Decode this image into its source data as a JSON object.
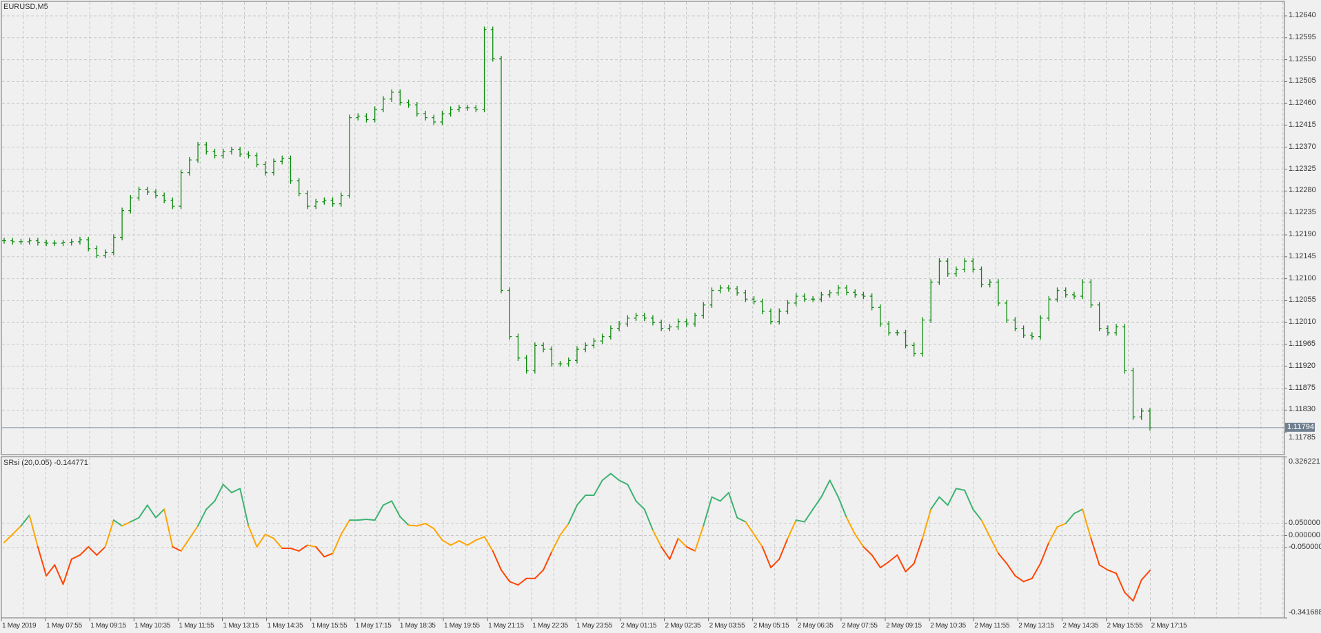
{
  "window": {
    "title": "EURUSD,M5"
  },
  "indicator": {
    "label": "SRsi (20,0.05) -0.144771"
  },
  "colors": {
    "background": "#f0f0f0",
    "grid": "#c8c8c8",
    "frame": "#707070",
    "bars": "#0b8a0b",
    "above_level": "#3cb371",
    "neutral": "#ffa500",
    "below_level": "#ff4500",
    "price_tag": "#708090"
  },
  "current_price": "1.11794",
  "price_axis": [
    "1.12640",
    "1.12595",
    "1.12550",
    "1.12505",
    "1.12460",
    "1.12415",
    "1.12370",
    "1.12325",
    "1.12280",
    "1.12235",
    "1.12190",
    "1.12145",
    "1.12100",
    "1.12055",
    "1.12010",
    "1.11965",
    "1.11920",
    "1.11875",
    "1.11830",
    "1.11785"
  ],
  "indicator_axis": [
    "0.326221",
    "0.050000",
    "0.000000",
    "-0.050000",
    "-0.341688"
  ],
  "time_axis": [
    "1 May 2019",
    "1 May 07:55",
    "1 May 09:15",
    "1 May 10:35",
    "1 May 11:55",
    "1 May 13:15",
    "1 May 14:35",
    "1 May 15:55",
    "1 May 17:15",
    "1 May 18:35",
    "1 May 19:55",
    "1 May 21:15",
    "1 May 22:35",
    "1 May 23:55",
    "2 May 01:15",
    "2 May 02:35",
    "2 May 03:55",
    "2 May 05:15",
    "2 May 06:35",
    "2 May 07:55",
    "2 May 09:15",
    "2 May 10:35",
    "2 May 11:55",
    "2 May 13:15",
    "2 May 14:35",
    "2 May 15:55",
    "2 May 17:15"
  ],
  "chart_data": [
    {
      "type": "bar",
      "title": "EURUSD,M5",
      "ylim": [
        1.11765,
        1.1268
      ],
      "grid": true,
      "close": [
        1.12178,
        1.12176,
        1.12176,
        1.12178,
        1.12174,
        1.12173,
        1.12173,
        1.12174,
        1.12176,
        1.1218,
        1.12162,
        1.12148,
        1.12154,
        1.12185,
        1.1224,
        1.12266,
        1.12283,
        1.12278,
        1.12271,
        1.12261,
        1.12249,
        1.12318,
        1.12344,
        1.12375,
        1.12361,
        1.12353,
        1.12361,
        1.12365,
        1.12356,
        1.12353,
        1.12335,
        1.12318,
        1.12341,
        1.12347,
        1.12301,
        1.12275,
        1.12249,
        1.12258,
        1.12261,
        1.12254,
        1.12271,
        1.12431,
        1.12434,
        1.12427,
        1.12448,
        1.12469,
        1.12483,
        1.12462,
        1.12457,
        1.12439,
        1.12431,
        1.12422,
        1.12439,
        1.12448,
        1.12451,
        1.12451,
        1.12448,
        1.12612,
        1.12552,
        1.12076,
        1.11981,
        1.11937,
        1.11911,
        1.11963,
        1.11955,
        1.11925,
        1.11925,
        1.11932,
        1.11955,
        1.11963,
        1.11972,
        1.11981,
        1.11998,
        1.12007,
        1.12019,
        1.12024,
        1.12019,
        1.1201,
        1.11998,
        1.12001,
        1.12012,
        1.12007,
        1.12024,
        1.12046,
        1.12076,
        1.12081,
        1.12079,
        1.12071,
        1.12058,
        1.12053,
        1.12033,
        1.12012,
        1.12033,
        1.1205,
        1.12064,
        1.12058,
        1.12058,
        1.12067,
        1.12071,
        1.12081,
        1.12072,
        1.12067,
        1.12064,
        1.12041,
        1.12007,
        1.11989,
        1.11989,
        1.11963,
        1.11946,
        1.12015,
        1.12093,
        1.12136,
        1.1211,
        1.12119,
        1.12136,
        1.12119,
        1.12088,
        1.12093,
        1.1205,
        1.12015,
        1.11998,
        1.11984,
        1.11981,
        1.12019,
        1.12058,
        1.12076,
        1.12067,
        1.12064,
        1.12093,
        1.12046,
        1.11998,
        1.11989,
        1.12001,
        1.11911,
        1.11816,
        1.11828,
        1.11794
      ]
    },
    {
      "type": "line",
      "title": "SRsi (20,0.05)",
      "ylim": [
        -0.341688,
        0.326221
      ],
      "levels": [
        0.05,
        0,
        -0.05
      ],
      "values": [
        -0.029,
        0.005,
        0.04,
        0.084,
        -0.047,
        -0.167,
        -0.122,
        -0.202,
        -0.098,
        -0.081,
        -0.047,
        -0.081,
        -0.047,
        0.064,
        0.04,
        0.057,
        0.074,
        0.126,
        0.074,
        0.109,
        -0.047,
        -0.064,
        -0.012,
        0.04,
        0.109,
        0.143,
        0.212,
        0.178,
        0.195,
        0.04,
        -0.047,
        0.005,
        -0.012,
        -0.053,
        -0.053,
        -0.064,
        -0.04,
        -0.047,
        -0.088,
        -0.074,
        0.005,
        0.064,
        0.064,
        0.067,
        0.064,
        0.126,
        0.143,
        0.078,
        0.043,
        0.04,
        0.05,
        0.029,
        -0.019,
        -0.04,
        -0.022,
        -0.04,
        -0.019,
        -0.005,
        -0.064,
        -0.143,
        -0.191,
        -0.205,
        -0.178,
        -0.178,
        -0.143,
        -0.067,
        0.002,
        0.05,
        0.126,
        0.167,
        0.167,
        0.229,
        0.257,
        0.229,
        0.212,
        0.143,
        0.109,
        0.022,
        -0.047,
        -0.098,
        -0.012,
        -0.047,
        -0.064,
        0.04,
        0.16,
        0.143,
        0.178,
        0.074,
        0.057,
        0.005,
        -0.047,
        -0.133,
        -0.098,
        -0.012,
        0.064,
        0.057,
        0.109,
        0.16,
        0.229,
        0.16,
        0.074,
        0.005,
        -0.047,
        -0.081,
        -0.133,
        -0.109,
        -0.081,
        -0.15,
        -0.116,
        -0.012,
        0.109,
        0.16,
        0.126,
        0.195,
        0.188,
        0.109,
        0.064,
        -0.005,
        -0.074,
        -0.116,
        -0.167,
        -0.191,
        -0.178,
        -0.116,
        -0.029,
        0.036,
        0.05,
        0.091,
        0.109,
        -0.012,
        -0.122,
        -0.143,
        -0.157,
        -0.236,
        -0.271,
        -0.184,
        -0.144771
      ]
    }
  ]
}
